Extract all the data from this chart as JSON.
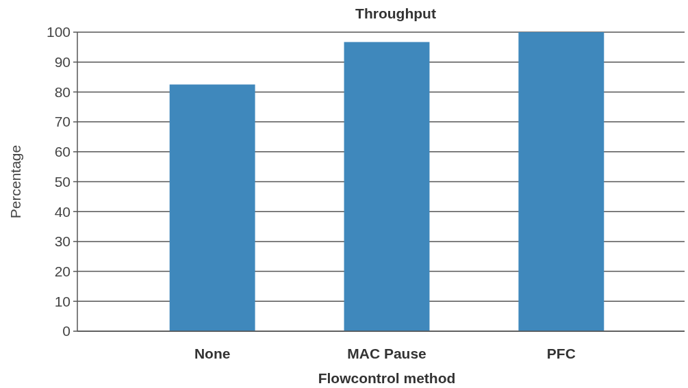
{
  "chart_data": {
    "type": "bar",
    "title": "Throughput",
    "xlabel": "Flowcontrol method",
    "ylabel": "Percentage",
    "categories": [
      "None",
      "MAC Pause",
      "PFC"
    ],
    "values": [
      82.5,
      96.7,
      100
    ],
    "color": "#3f88bc",
    "ylim": [
      0,
      100
    ],
    "yticks": [
      0,
      10,
      20,
      30,
      40,
      50,
      60,
      70,
      80,
      90,
      100
    ],
    "grid": "y"
  }
}
